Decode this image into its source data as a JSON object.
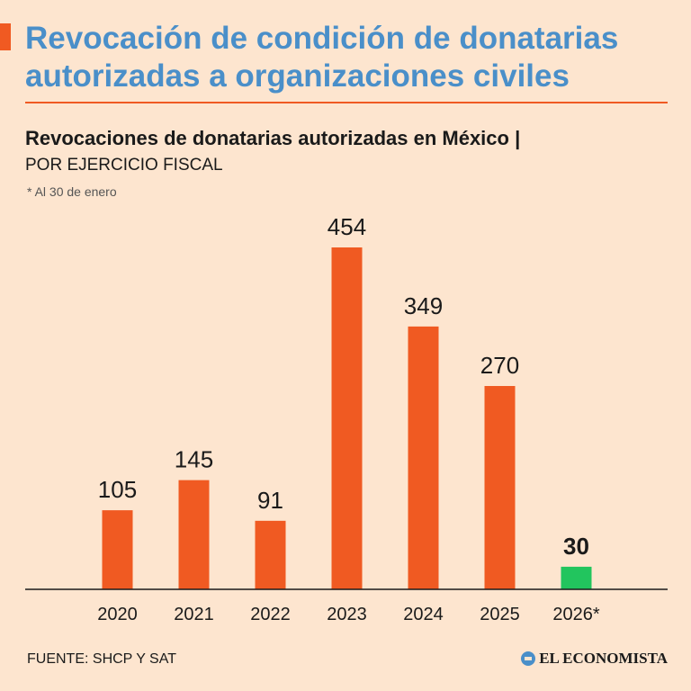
{
  "header": {
    "title": "Revocación de condición de donatarias autorizadas a organizaciones civiles",
    "subtitle": "Revocaciones de donatarias autorizadas en México |",
    "subtitle_2": "POR EJERCICIO FISCAL",
    "note": "* Al 30 de enero"
  },
  "footer": {
    "source": "FUENTE: SHCP Y SAT",
    "brand": "EL ECONOMISTA"
  },
  "colors": {
    "bar": "#f05a22",
    "highlight": "#22c55e",
    "title": "#4a8fc9"
  },
  "chart_data": {
    "type": "bar",
    "title": "Revocaciones de donatarias autorizadas en México",
    "xlabel": "",
    "ylabel": "",
    "categories": [
      "2020",
      "2021",
      "2022",
      "2023",
      "2024",
      "2025",
      "2026*"
    ],
    "values": [
      105,
      145,
      91,
      454,
      349,
      270,
      30
    ],
    "value_labels": [
      "105",
      "145",
      "91",
      "454",
      "349",
      "270",
      "30"
    ],
    "highlight_index": 6,
    "ylim": [
      0,
      454
    ],
    "grid": false
  }
}
